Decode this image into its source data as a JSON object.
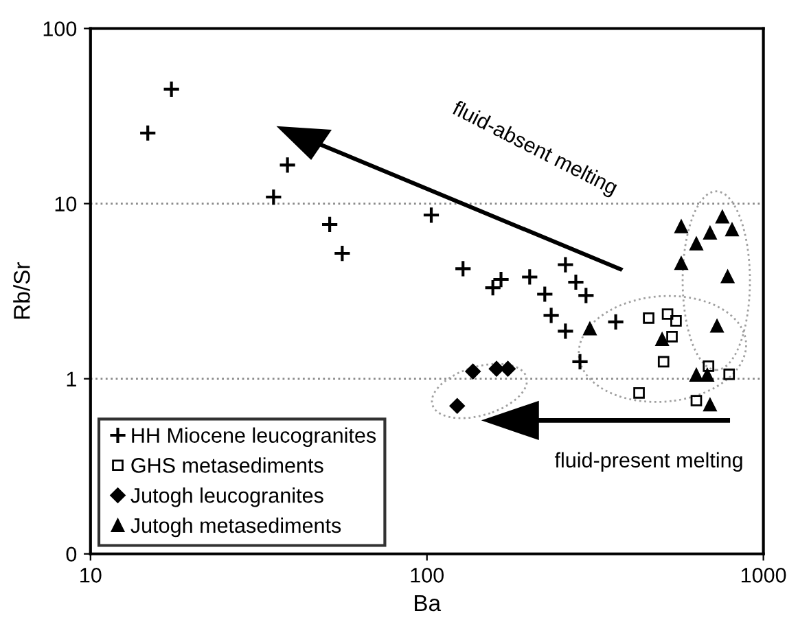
{
  "chart_data": {
    "type": "scatter",
    "xlabel": "Ba",
    "ylabel": "Rb/Sr",
    "log": "xy",
    "xlim": [
      10,
      1000
    ],
    "xticks": [
      10,
      100,
      1000
    ],
    "ylim": [
      0.1,
      100
    ],
    "yticks": [
      {
        "value": 0.1,
        "label": "0"
      },
      1,
      10,
      100
    ],
    "grid": "y",
    "legend": "bottom left",
    "annotations": [
      "fluid-absent melting",
      "fluid-present melting"
    ],
    "series": [
      {
        "name": "HH Miocene leucogranites",
        "color": "#000000",
        "marker": "cross",
        "x": [
          14.8,
          17.4,
          38.5,
          35,
          51.4,
          56,
          103,
          128,
          166,
          157,
          202,
          258,
          277,
          297,
          224,
          234,
          258,
          285,
          364
        ],
        "values": [
          25.3,
          45,
          16.6,
          10.9,
          7.6,
          5.2,
          8.6,
          4.25,
          3.69,
          3.31,
          3.81,
          4.48,
          3.56,
          2.99,
          3.04,
          2.3,
          1.87,
          1.25,
          2.11
        ]
      },
      {
        "name": "GHS metasediments",
        "color": "#000000",
        "marker": "square",
        "x": [
          456,
          519,
          550,
          535,
          505,
          687,
          791,
          427,
          632
        ],
        "values": [
          2.22,
          2.34,
          2.14,
          1.74,
          1.25,
          1.18,
          1.06,
          0.83,
          0.75
        ]
      },
      {
        "name": "Jutogh leucogranites",
        "color": "#000000",
        "marker": "diamond",
        "x": [
          137,
          161,
          174,
          123
        ],
        "values": [
          1.1,
          1.14,
          1.14,
          0.7
        ]
      },
      {
        "name": "Jutogh metasediments",
        "color": "#000000",
        "marker": "triangle",
        "x": [
          305,
          570,
          755,
          694,
          807,
          632,
          570,
          783,
          728,
          500,
          632,
          681,
          694
        ],
        "values": [
          1.93,
          7.4,
          8.4,
          6.8,
          7.1,
          5.9,
          4.56,
          3.83,
          2.0,
          1.68,
          1.05,
          1.05,
          0.71
        ]
      }
    ]
  }
}
